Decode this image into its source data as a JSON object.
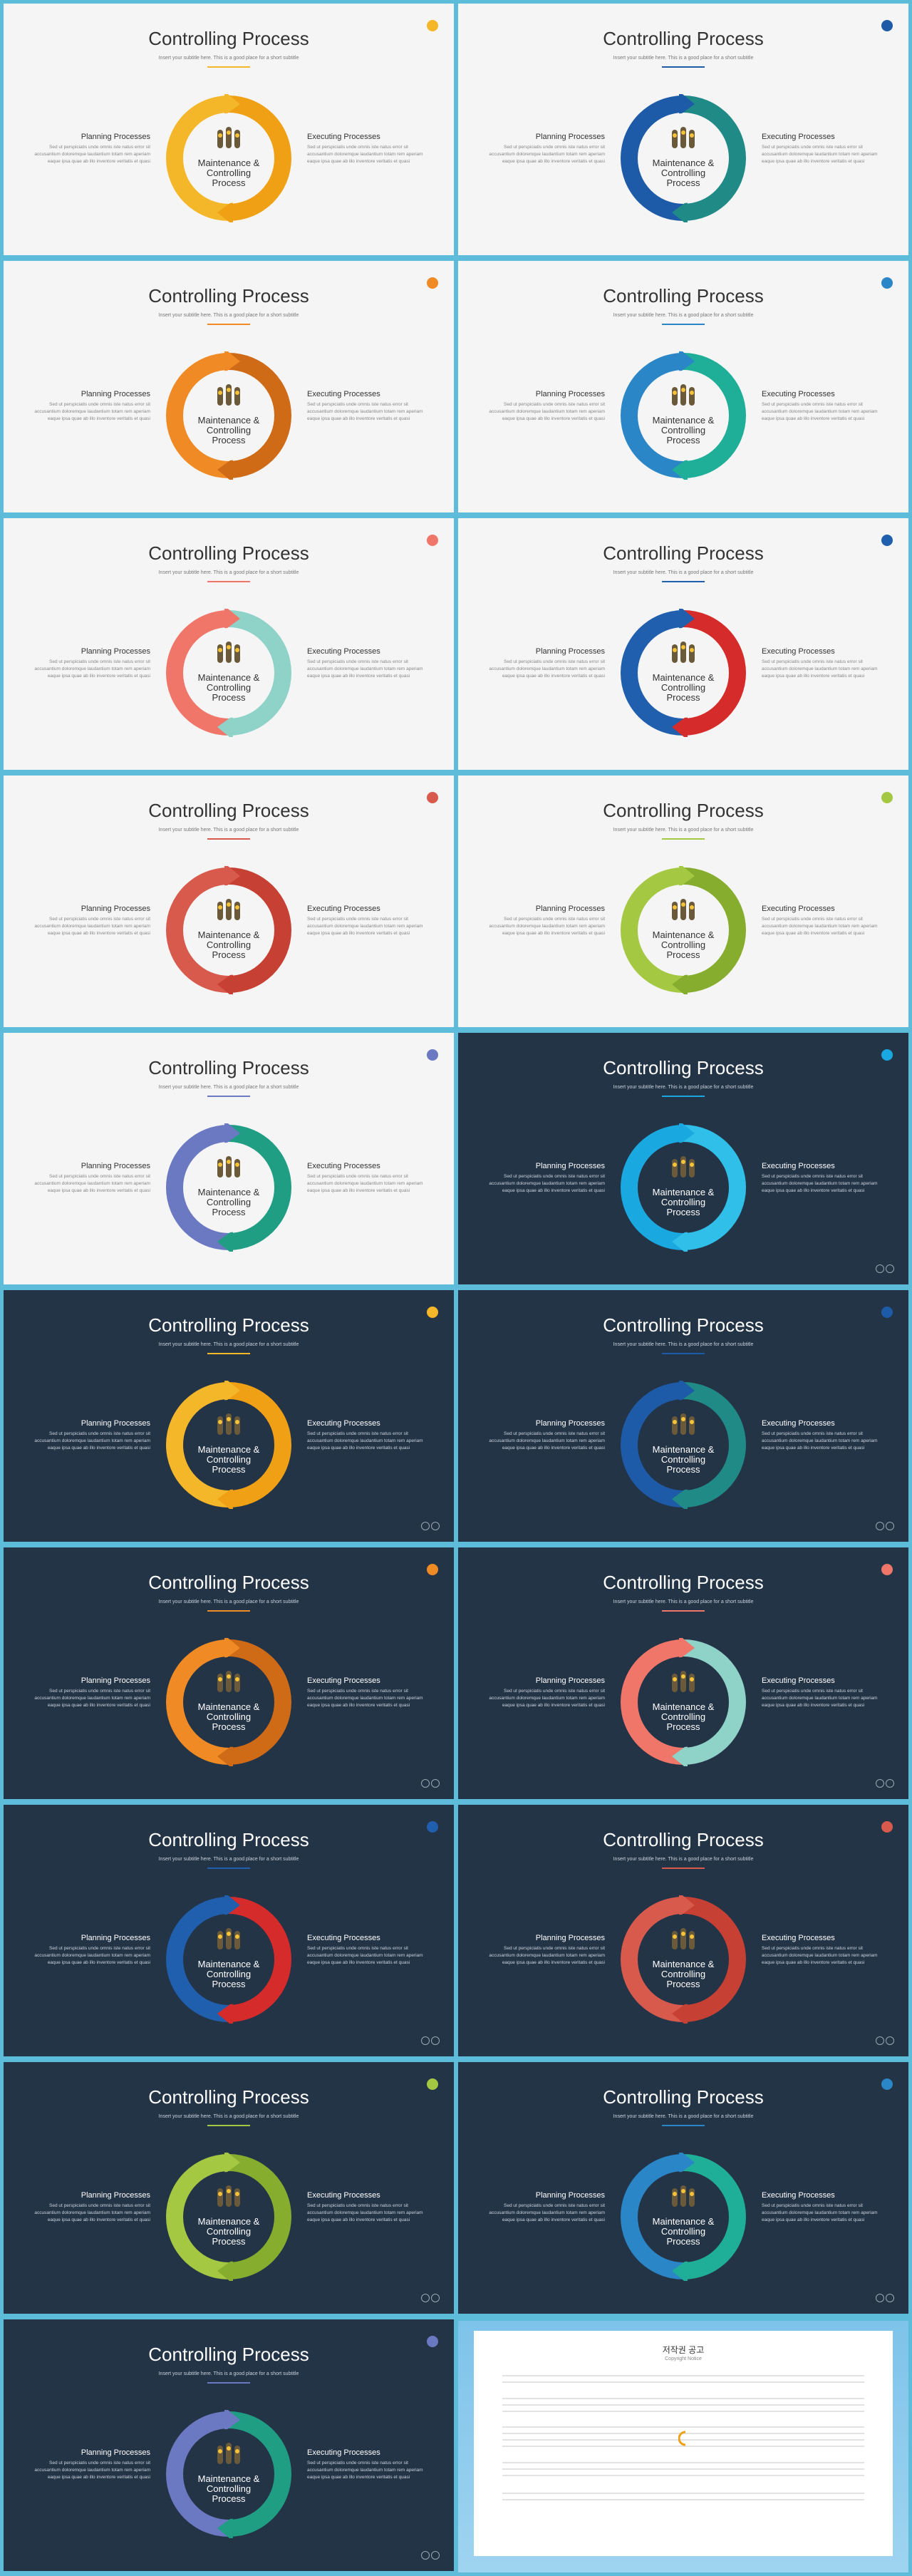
{
  "slide_text": {
    "title": "Controlling Process",
    "subtitle": "Insert your subtitle here. This is a good place for a short subtitle",
    "center": [
      "Maintenance &",
      "Controlling",
      "Process"
    ],
    "left_heading": "Planning Processes",
    "right_heading": "Executing Processes",
    "body_line1": "Sed ut perspiciatis unde omnis iste natus error sit",
    "body_line2": "accusantium doloremque laudantium totam rem aperiam",
    "body_line3": "eaque ipsa quae ab illo inventore veritatis et quasi"
  },
  "slides": [
    {
      "theme": "light",
      "c1": "#f5b72a",
      "c2": "#f0a014",
      "accent": "#f5b72a"
    },
    {
      "theme": "light",
      "c1": "#1d5aa8",
      "c2": "#1f8a86",
      "accent": "#1d5aa8"
    },
    {
      "theme": "light",
      "c1": "#f08a24",
      "c2": "#cf6a17",
      "accent": "#f08a24"
    },
    {
      "theme": "light",
      "c1": "#2a86c7",
      "c2": "#1fae98",
      "accent": "#2a86c7"
    },
    {
      "theme": "light",
      "c1": "#f0766a",
      "c2": "#8fd3c8",
      "accent": "#f0766a"
    },
    {
      "theme": "light",
      "c1": "#1f5fae",
      "c2": "#d62b2b",
      "accent": "#1f5fae"
    },
    {
      "theme": "light",
      "c1": "#d85a4d",
      "c2": "#c74034",
      "accent": "#d85a4d"
    },
    {
      "theme": "light",
      "c1": "#a5c843",
      "c2": "#86ad2e",
      "accent": "#a5c843"
    },
    {
      "theme": "light",
      "c1": "#6b78c2",
      "c2": "#1f9e84",
      "accent": "#6b78c2"
    },
    {
      "theme": "dark",
      "c1": "#1aa8e0",
      "c2": "#2fbfe8",
      "accent": "#1aa8e0"
    },
    {
      "theme": "dark",
      "c1": "#f5b72a",
      "c2": "#f0a014",
      "accent": "#f5b72a"
    },
    {
      "theme": "dark",
      "c1": "#1d5aa8",
      "c2": "#1f8a86",
      "accent": "#1d5aa8"
    },
    {
      "theme": "dark",
      "c1": "#f08a24",
      "c2": "#cf6a17",
      "accent": "#f08a24"
    },
    {
      "theme": "dark",
      "c1": "#f0766a",
      "c2": "#8fd3c8",
      "accent": "#f0766a"
    },
    {
      "theme": "dark",
      "c1": "#1f5fae",
      "c2": "#d62b2b",
      "accent": "#1f5fae"
    },
    {
      "theme": "dark",
      "c1": "#d85a4d",
      "c2": "#c74034",
      "accent": "#d85a4d"
    },
    {
      "theme": "dark",
      "c1": "#a5c843",
      "c2": "#86ad2e",
      "accent": "#a5c843"
    },
    {
      "theme": "dark",
      "c1": "#2a86c7",
      "c2": "#1fae98",
      "accent": "#2a86c7"
    },
    {
      "theme": "dark",
      "c1": "#6b78c2",
      "c2": "#1f9e84",
      "accent": "#6b78c2"
    }
  ],
  "notice": {
    "title": "저작권 공고",
    "subtitle": "Copyright Notice"
  }
}
